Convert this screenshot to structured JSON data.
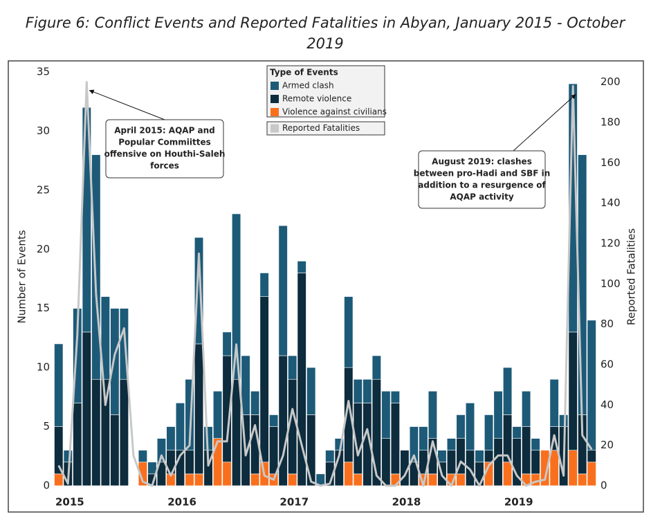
{
  "chart_data": {
    "type": "stacked_bar_line",
    "title": "Figure 6: Conflict Events and Reported Fatalities in Abyan, January 2015 - October 2019",
    "ylabel": "Number of Events",
    "y2label": "Reported Fatalities",
    "legend_title": "Type of Events",
    "categories": [
      "2015",
      null,
      null,
      null,
      null,
      null,
      null,
      null,
      null,
      null,
      null,
      null,
      "2016",
      null,
      null,
      null,
      null,
      null,
      null,
      null,
      null,
      null,
      null,
      null,
      "2017",
      null,
      null,
      null,
      null,
      null,
      null,
      null,
      null,
      null,
      null,
      null,
      "2018",
      null,
      null,
      null,
      null,
      null,
      null,
      null,
      null,
      null,
      null,
      null,
      "2019",
      null,
      null,
      null,
      null,
      null,
      null,
      null,
      null,
      null
    ],
    "series": [
      {
        "name": "Violence against civilians",
        "color": "#f8701e",
        "type": "bar",
        "values": [
          1,
          0,
          0,
          0,
          0,
          0,
          0,
          0,
          0,
          2,
          0,
          0,
          1,
          0,
          1,
          1,
          0,
          4,
          2,
          0,
          0,
          1,
          2,
          1,
          0,
          1,
          0,
          0,
          0,
          0,
          0,
          2,
          1,
          0,
          0,
          0,
          1,
          0,
          0,
          1,
          1,
          0,
          1,
          1,
          0,
          0,
          2,
          0,
          2,
          0,
          1,
          1,
          3,
          3,
          0,
          3,
          1,
          2
        ]
      },
      {
        "name": "Remote violence",
        "color": "#0d2c3d",
        "type": "bar",
        "values": [
          4,
          2,
          7,
          13,
          9,
          9,
          6,
          9,
          0,
          0,
          1,
          2,
          2,
          3,
          2,
          11,
          3,
          0,
          9,
          9,
          6,
          5,
          14,
          4,
          11,
          8,
          18,
          6,
          0,
          2,
          3,
          8,
          6,
          7,
          9,
          4,
          6,
          3,
          2,
          2,
          3,
          2,
          2,
          3,
          3,
          2,
          1,
          4,
          4,
          4,
          4,
          2,
          0,
          2,
          5,
          10,
          5,
          1
        ]
      },
      {
        "name": "Armed clash",
        "color": "#1d5a78",
        "type": "bar",
        "values": [
          7,
          1,
          8,
          19,
          19,
          7,
          9,
          6,
          0,
          1,
          1,
          2,
          2,
          4,
          6,
          9,
          2,
          4,
          2,
          14,
          5,
          2,
          2,
          1,
          11,
          2,
          1,
          4,
          1,
          1,
          1,
          6,
          2,
          2,
          2,
          4,
          1,
          0,
          3,
          2,
          4,
          1,
          1,
          2,
          4,
          1,
          3,
          4,
          4,
          1,
          3,
          1,
          0,
          4,
          1,
          21,
          22,
          11
        ]
      },
      {
        "name": "Reported Fatalities",
        "color": "#c8c8c8",
        "type": "line",
        "axis": "y2",
        "values": [
          10,
          1,
          75,
          200,
          95,
          40,
          65,
          78,
          15,
          2,
          0,
          15,
          5,
          15,
          20,
          115,
          10,
          22,
          22,
          70,
          15,
          30,
          5,
          3,
          15,
          38,
          20,
          2,
          0,
          1,
          15,
          42,
          15,
          28,
          5,
          0,
          0,
          5,
          15,
          0,
          22,
          5,
          0,
          12,
          8,
          0,
          10,
          15,
          15,
          5,
          0,
          2,
          3,
          25,
          5,
          198,
          25,
          18
        ]
      }
    ],
    "ylim": [
      0,
      35
    ],
    "yticks": [
      0,
      5,
      10,
      15,
      20,
      25,
      30,
      35
    ],
    "y2lim": [
      0,
      205
    ],
    "y2ticks": [
      0,
      20,
      40,
      60,
      80,
      100,
      120,
      140,
      160,
      180,
      200
    ],
    "annotations": [
      {
        "lines": [
          "April 2015: AQAP and",
          "Popular Commiittes",
          "offensive on Houthi-Saleh",
          "forces"
        ],
        "target": 3
      },
      {
        "lines": [
          "August 2019: clashes",
          "between pro-Hadi and SBF in",
          "addition to a resurgence of",
          "AQAP activity"
        ],
        "target": 55
      }
    ]
  }
}
